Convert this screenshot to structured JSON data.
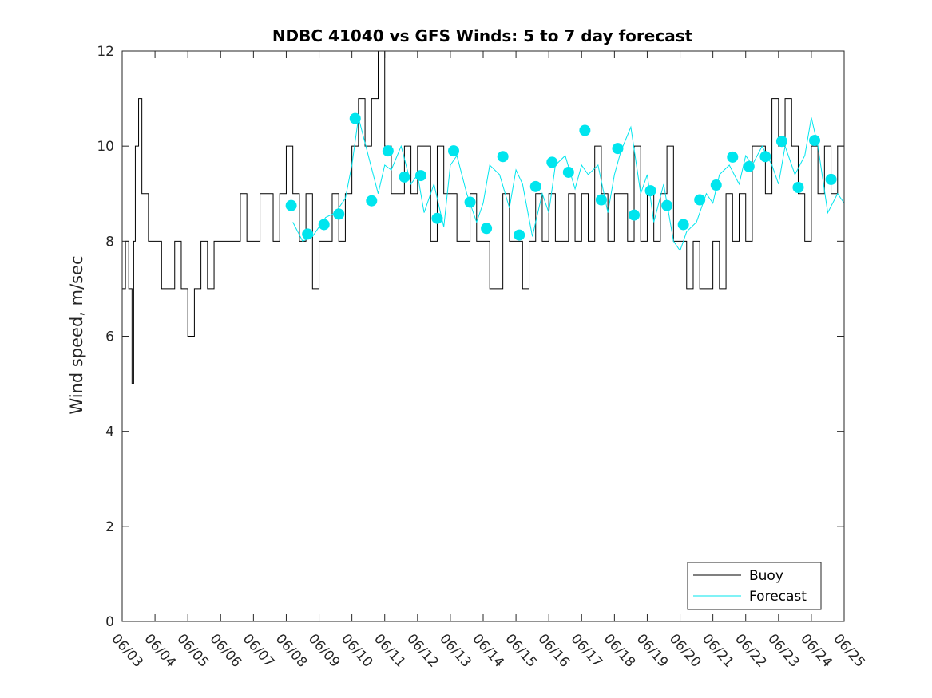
{
  "chart_data": {
    "type": "line",
    "title": "NDBC 41040 vs GFS Winds: 5 to 7 day forecast",
    "xlabel": "",
    "ylabel": "Wind speed, m/sec",
    "ylim": [
      0,
      12
    ],
    "yticks": [
      0,
      2,
      4,
      6,
      8,
      10,
      12
    ],
    "xlim_days": [
      0,
      22
    ],
    "xtick_labels": [
      "06/03",
      "06/04",
      "06/05",
      "06/06",
      "06/07",
      "06/08",
      "06/09",
      "06/10",
      "06/11",
      "06/12",
      "06/13",
      "06/14",
      "06/15",
      "06/16",
      "06/17",
      "06/18",
      "06/19",
      "06/20",
      "06/21",
      "06/22",
      "06/23",
      "06/24",
      "06/25"
    ],
    "grid": false,
    "legend_position": "bottom-right",
    "series": [
      {
        "name": "Buoy",
        "color": "#000000",
        "x": [
          0.0,
          0.1,
          0.2,
          0.3,
          0.35,
          0.4,
          0.5,
          0.6,
          0.7,
          0.8,
          1.0,
          1.2,
          1.4,
          1.6,
          1.8,
          2.0,
          2.2,
          2.4,
          2.6,
          2.8,
          3.0,
          3.2,
          3.4,
          3.6,
          3.8,
          4.0,
          4.2,
          4.4,
          4.6,
          4.8,
          5.0,
          5.2,
          5.4,
          5.6,
          5.8,
          6.0,
          6.2,
          6.4,
          6.6,
          6.8,
          7.0,
          7.2,
          7.4,
          7.6,
          7.8,
          8.0,
          8.2,
          8.4,
          8.6,
          8.8,
          9.0,
          9.2,
          9.4,
          9.6,
          9.8,
          10.0,
          10.2,
          10.4,
          10.6,
          10.8,
          11.0,
          11.2,
          11.4,
          11.6,
          11.8,
          12.0,
          12.2,
          12.4,
          12.6,
          12.8,
          13.0,
          13.2,
          13.4,
          13.6,
          13.8,
          14.0,
          14.2,
          14.4,
          14.6,
          14.8,
          15.0,
          15.2,
          15.4,
          15.6,
          15.8,
          16.0,
          16.2,
          16.4,
          16.6,
          16.8,
          17.0,
          17.2,
          17.4,
          17.6,
          17.8,
          18.0,
          18.2,
          18.4,
          18.6,
          18.8,
          19.0,
          19.2,
          19.4,
          19.6,
          19.8,
          20.0,
          20.2,
          20.4,
          20.6,
          20.8,
          21.0,
          21.2,
          21.4,
          21.6,
          21.8,
          22.0
        ],
        "y": [
          7,
          8,
          7,
          5,
          8,
          10,
          11,
          9,
          9,
          8,
          8,
          7,
          7,
          8,
          7,
          6,
          7,
          8,
          7,
          8,
          8,
          8,
          8,
          9,
          8,
          8,
          9,
          9,
          8,
          9,
          10,
          9,
          8,
          9,
          7,
          8,
          8,
          9,
          8,
          9,
          10,
          11,
          10,
          11,
          12,
          10,
          9,
          9,
          10,
          9,
          10,
          10,
          8,
          10,
          9,
          9,
          8,
          8,
          9,
          8,
          8,
          7,
          7,
          9,
          8,
          8,
          7,
          8,
          9,
          8,
          9,
          8,
          8,
          9,
          8,
          9,
          8,
          10,
          9,
          8,
          9,
          9,
          8,
          10,
          8,
          9,
          8,
          9,
          10,
          8,
          8,
          7,
          8,
          7,
          7,
          8,
          7,
          9,
          8,
          9,
          8,
          10,
          10,
          9,
          11,
          10,
          11,
          10,
          9,
          8,
          10,
          9,
          10,
          9,
          10,
          9
        ]
      },
      {
        "name": "Forecast",
        "color": "#00e5ee",
        "x": [
          5.2,
          5.5,
          5.8,
          6.0,
          6.2,
          6.5,
          6.8,
          7.0,
          7.2,
          7.5,
          7.8,
          8.0,
          8.2,
          8.5,
          8.8,
          9.0,
          9.2,
          9.5,
          9.8,
          10.0,
          10.2,
          10.5,
          10.8,
          11.0,
          11.2,
          11.5,
          11.8,
          12.0,
          12.2,
          12.5,
          12.8,
          13.0,
          13.2,
          13.5,
          13.8,
          14.0,
          14.2,
          14.5,
          14.8,
          15.0,
          15.2,
          15.5,
          15.8,
          16.0,
          16.2,
          16.5,
          16.8,
          17.0,
          17.2,
          17.5,
          17.8,
          18.0,
          18.2,
          18.5,
          18.8,
          19.0,
          19.2,
          19.5,
          19.8,
          20.0,
          20.2,
          20.5,
          20.8,
          21.0,
          21.2,
          21.5,
          21.8,
          22.0
        ],
        "y": [
          8.4,
          8.0,
          8.1,
          8.3,
          8.5,
          8.6,
          8.9,
          9.6,
          10.6,
          9.8,
          9.0,
          9.6,
          9.5,
          10.0,
          9.2,
          9.4,
          8.6,
          9.2,
          8.3,
          9.6,
          9.8,
          9.0,
          8.4,
          8.8,
          9.6,
          9.4,
          8.7,
          9.5,
          9.2,
          8.1,
          9.0,
          8.6,
          9.6,
          9.8,
          9.1,
          9.6,
          9.4,
          9.6,
          8.6,
          9.4,
          9.9,
          10.4,
          9.0,
          9.4,
          8.4,
          9.2,
          8.0,
          7.8,
          8.2,
          8.4,
          9.0,
          8.8,
          9.4,
          9.6,
          9.2,
          9.8,
          9.6,
          10.0,
          9.6,
          9.2,
          10.0,
          9.4,
          9.8,
          10.6,
          10.0,
          8.6,
          9.0,
          8.8
        ]
      },
      {
        "name": "",
        "type": "scatter",
        "color": "#00e5ee",
        "x": [
          5.15,
          5.65,
          6.15,
          6.6,
          7.1,
          7.6,
          8.1,
          8.6,
          9.1,
          9.6,
          10.1,
          10.6,
          11.1,
          11.6,
          12.1,
          12.6,
          13.1,
          13.6,
          14.1,
          14.6,
          15.1,
          15.6,
          16.1,
          16.6,
          17.1,
          17.6,
          18.1,
          18.6,
          19.1,
          19.6,
          20.1,
          20.6,
          21.1,
          21.6
        ],
        "y": [
          8.75,
          8.15,
          8.35,
          8.57,
          10.58,
          8.85,
          9.9,
          9.35,
          9.38,
          8.48,
          9.9,
          8.82,
          8.27,
          9.78,
          8.13,
          9.15,
          9.66,
          9.45,
          10.33,
          8.87,
          9.95,
          8.55,
          9.06,
          8.75,
          8.35,
          8.87,
          9.18,
          9.77,
          9.57,
          9.78,
          10.1,
          9.13,
          10.12,
          9.3
        ]
      }
    ]
  }
}
